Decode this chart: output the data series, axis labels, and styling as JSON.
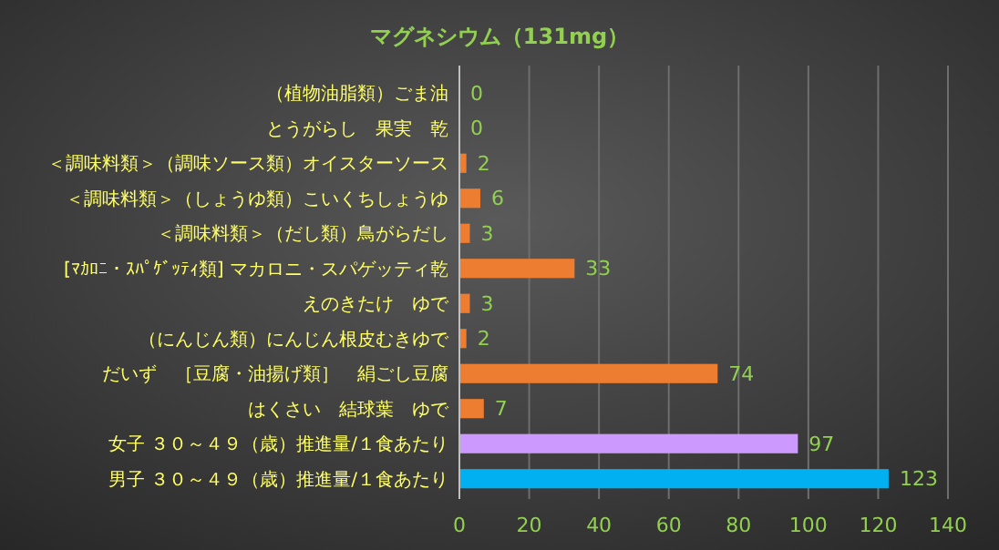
{
  "chart_data": {
    "type": "bar",
    "orientation": "horizontal",
    "title": "マグネシウム（131mg）",
    "categories": [
      "（植物油脂類）ごま油",
      "とうがらし　果実　乾",
      "＜調味料類＞（調味ソース類）オイスターソース",
      "＜調味料類＞（しょうゆ類）こいくちしょうゆ",
      "＜調味料類＞（だし類）鳥がらだし",
      "[ﾏｶﾛﾆ・ｽﾊﾟｹﾞｯﾃｨ類] マカロニ・スパゲッティ乾",
      "えのきたけ　ゆで",
      "（にんじん類）にんじん根皮むきゆで",
      "だいず　［豆腐・油揚げ類］　絹ごし豆腐",
      "はくさい　結球葉　ゆで",
      "女子 ３０～４９（歳）推進量/１食あたり",
      "男子 ３０～４９（歳）推進量/１食あたり"
    ],
    "values": [
      0,
      0,
      2,
      6,
      3,
      33,
      3,
      2,
      74,
      7,
      97,
      123
    ],
    "colors": [
      "#ed7d31",
      "#ed7d31",
      "#ed7d31",
      "#ed7d31",
      "#ed7d31",
      "#ed7d31",
      "#ed7d31",
      "#ed7d31",
      "#ed7d31",
      "#ed7d31",
      "#cc99ff",
      "#00b0f0"
    ],
    "xlim": [
      0,
      140
    ],
    "xticks": [
      0,
      20,
      40,
      60,
      80,
      100,
      120,
      140
    ],
    "grid": "x",
    "data_labels": true
  }
}
